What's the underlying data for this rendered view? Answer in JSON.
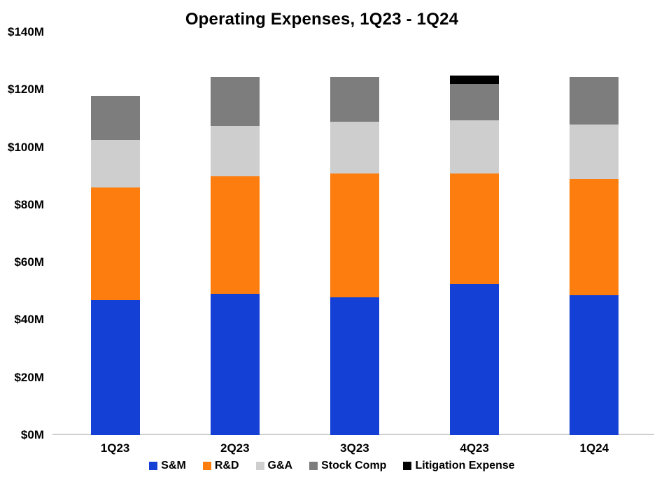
{
  "chart_data": {
    "type": "bar",
    "stacked": true,
    "title": "Operating Expenses, 1Q23 - 1Q24",
    "categories": [
      "1Q23",
      "2Q23",
      "3Q23",
      "4Q23",
      "1Q24"
    ],
    "series": [
      {
        "name": "S&M",
        "color": "#1540d6",
        "values": [
          47,
          49,
          48,
          52.5,
          48.5
        ]
      },
      {
        "name": "R&D",
        "color": "#fd7e0e",
        "values": [
          39,
          41,
          43,
          38.5,
          40.5
        ]
      },
      {
        "name": "G&A",
        "color": "#cecece",
        "values": [
          16.5,
          17.5,
          18,
          18.5,
          19
        ]
      },
      {
        "name": "Stock Comp",
        "color": "#7d7d7d",
        "values": [
          15.5,
          17,
          15.5,
          12.5,
          16.5
        ]
      },
      {
        "name": "Litigation Expense",
        "color": "#000000",
        "values": [
          0,
          0,
          0,
          3,
          0
        ]
      }
    ],
    "totals": [
      118,
      124.5,
      124.5,
      125,
      124.5
    ],
    "unit": "$M",
    "y_axis": {
      "min": 0,
      "max": 140,
      "tick_interval": 20,
      "ticks": [
        "$0M",
        "$20M",
        "$40M",
        "$60M",
        "$80M",
        "$100M",
        "$120M",
        "$140M"
      ]
    },
    "grid": false,
    "legend_position": "bottom"
  },
  "layout_colors": {
    "axis_line": "#cfcfcf",
    "text": "#000000",
    "background": "#ffffff"
  }
}
